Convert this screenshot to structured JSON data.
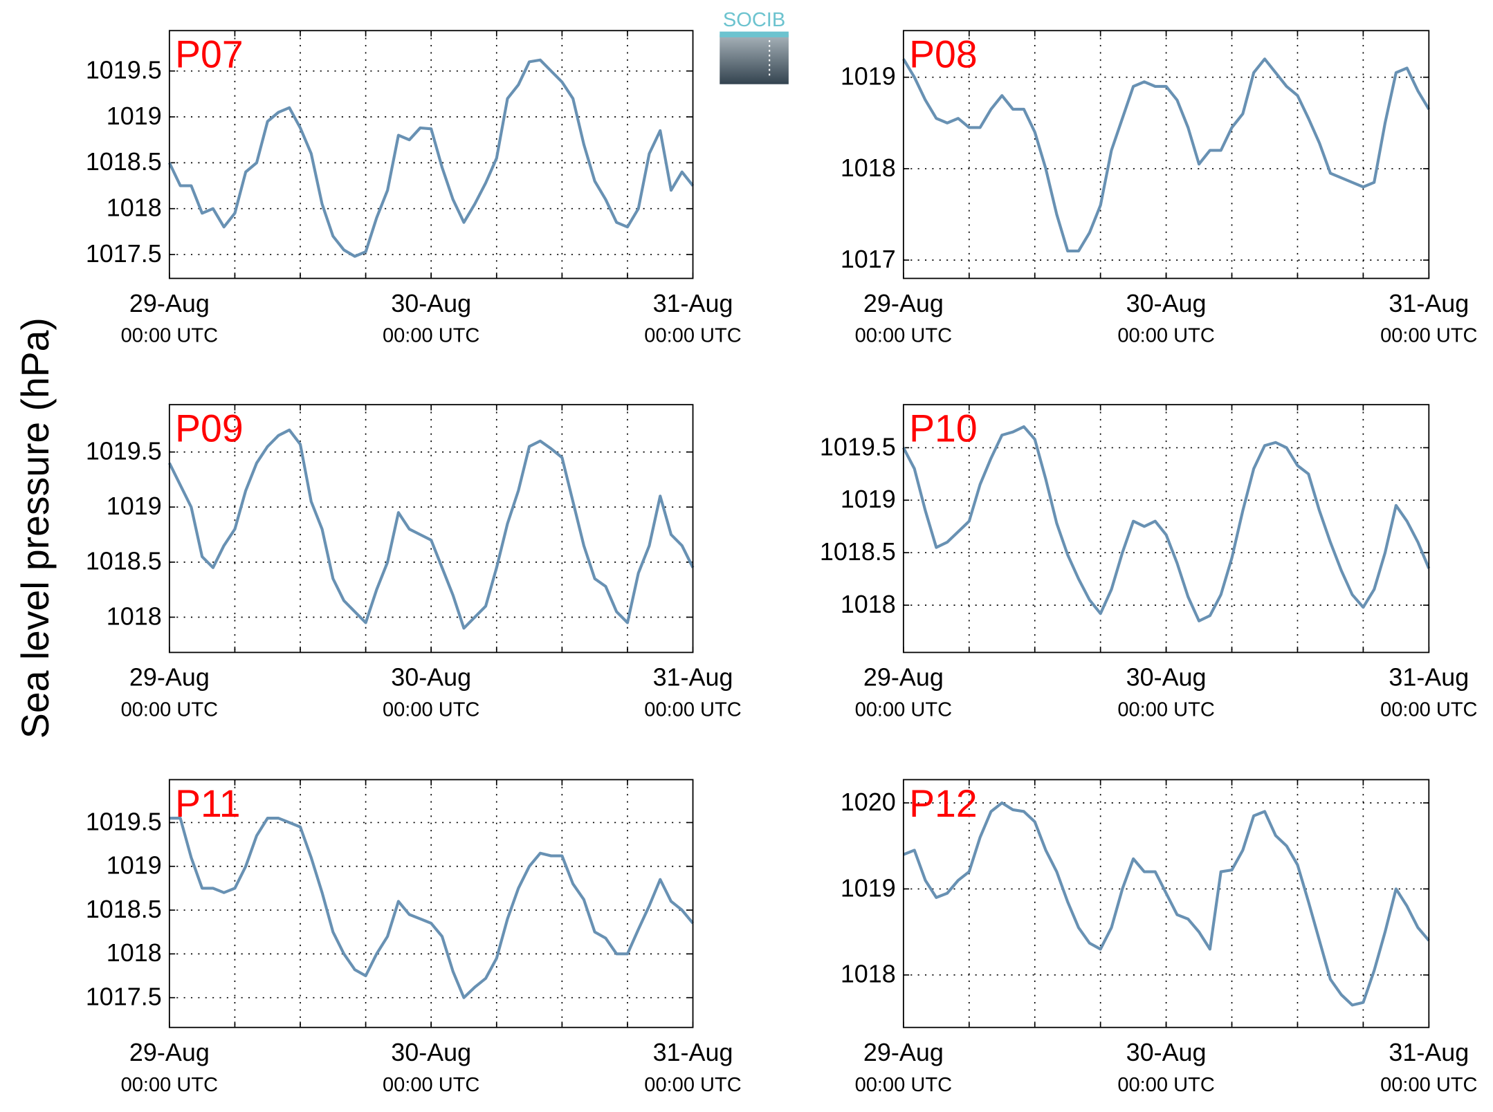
{
  "y_label": "Sea level pressure (hPa)",
  "logo": "SOCIB",
  "chart_data": [
    {
      "type": "line",
      "title": "P07",
      "title_color": "#ff0000",
      "x": [
        0,
        1,
        2,
        3,
        4,
        5,
        6,
        7,
        8,
        9,
        10,
        11,
        12,
        13,
        14,
        15,
        16,
        17,
        18,
        19,
        20,
        21,
        22,
        23,
        24,
        25,
        26,
        27,
        28,
        29,
        30,
        31,
        32,
        33,
        34,
        35,
        36,
        37,
        38,
        39,
        40,
        41,
        42,
        43,
        44,
        45,
        46,
        47,
        48
      ],
      "series": [
        {
          "color": "#6891b3",
          "values": [
            1018.5,
            1018.25,
            1018.25,
            1017.95,
            1018.0,
            1017.8,
            1017.95,
            1018.4,
            1018.5,
            1018.95,
            1019.05,
            1019.1,
            1018.88,
            1018.6,
            1018.05,
            1017.7,
            1017.55,
            1017.48,
            1017.53,
            1017.9,
            1018.2,
            1018.8,
            1018.75,
            1018.88,
            1018.87,
            1018.45,
            1018.1,
            1017.85,
            1018.05,
            1018.28,
            1018.55,
            1019.2,
            1019.35,
            1019.6,
            1019.62,
            1019.5,
            1019.38,
            1019.2,
            1018.7,
            1018.3,
            1018.1,
            1017.85,
            1017.8,
            1018.0,
            1018.6,
            1018.85,
            1018.2,
            1018.4,
            1018.25
          ]
        }
      ],
      "xlim": [
        0,
        48
      ],
      "xticks": [
        {
          "value": 0,
          "label": [
            "29-Aug",
            "00:00 UTC"
          ]
        },
        {
          "value": 24,
          "label": [
            "30-Aug",
            "00:00 UTC"
          ]
        },
        {
          "value": 48,
          "label": [
            "31-Aug",
            "00:00 UTC"
          ]
        }
      ],
      "xgrid": [
        6,
        12,
        18,
        24,
        30,
        36,
        42
      ],
      "ylim": [
        1017.24,
        1019.94
      ],
      "yticks": [
        1017.5,
        1018,
        1018.5,
        1019,
        1019.5
      ],
      "grid": true
    },
    {
      "type": "line",
      "title": "P08",
      "title_color": "#ff0000",
      "x": [
        0,
        1,
        2,
        3,
        4,
        5,
        6,
        7,
        8,
        9,
        10,
        11,
        12,
        13,
        14,
        15,
        16,
        17,
        18,
        19,
        20,
        21,
        22,
        23,
        24,
        25,
        26,
        27,
        28,
        29,
        30,
        31,
        32,
        33,
        34,
        35,
        36,
        37,
        38,
        39,
        40,
        41,
        42,
        43,
        44,
        45,
        46,
        47,
        48
      ],
      "series": [
        {
          "color": "#6891b3",
          "values": [
            1019.2,
            1019.0,
            1018.75,
            1018.55,
            1018.5,
            1018.55,
            1018.45,
            1018.45,
            1018.65,
            1018.8,
            1018.65,
            1018.65,
            1018.4,
            1018.0,
            1017.5,
            1017.1,
            1017.1,
            1017.3,
            1017.6,
            1018.2,
            1018.55,
            1018.9,
            1018.95,
            1018.9,
            1018.9,
            1018.75,
            1018.45,
            1018.05,
            1018.2,
            1018.2,
            1018.45,
            1018.6,
            1019.05,
            1019.2,
            1019.05,
            1018.9,
            1018.8,
            1018.55,
            1018.28,
            1017.95,
            1017.9,
            1017.85,
            1017.8,
            1017.85,
            1018.5,
            1019.05,
            1019.1,
            1018.85,
            1018.65
          ]
        }
      ],
      "xlim": [
        0,
        48
      ],
      "xticks": [
        {
          "value": 0,
          "label": [
            "29-Aug",
            "00:00 UTC"
          ]
        },
        {
          "value": 24,
          "label": [
            "30-Aug",
            "00:00 UTC"
          ]
        },
        {
          "value": 48,
          "label": [
            "31-Aug",
            "00:00 UTC"
          ]
        }
      ],
      "xgrid": [
        6,
        12,
        18,
        24,
        30,
        36,
        42
      ],
      "ylim": [
        1016.8,
        1019.51
      ],
      "yticks": [
        1017,
        1018,
        1019
      ],
      "grid": true
    },
    {
      "type": "line",
      "title": "P09",
      "title_color": "#ff0000",
      "x": [
        0,
        1,
        2,
        3,
        4,
        5,
        6,
        7,
        8,
        9,
        10,
        11,
        12,
        13,
        14,
        15,
        16,
        17,
        18,
        19,
        20,
        21,
        22,
        23,
        24,
        25,
        26,
        27,
        28,
        29,
        30,
        31,
        32,
        33,
        34,
        35,
        36,
        37,
        38,
        39,
        40,
        41,
        42,
        43,
        44,
        45,
        46,
        47,
        48
      ],
      "series": [
        {
          "color": "#6891b3",
          "values": [
            1019.4,
            1019.2,
            1019.0,
            1018.55,
            1018.45,
            1018.65,
            1018.8,
            1019.15,
            1019.4,
            1019.55,
            1019.65,
            1019.7,
            1019.57,
            1019.05,
            1018.8,
            1018.35,
            1018.15,
            1018.05,
            1017.95,
            1018.25,
            1018.5,
            1018.95,
            1018.8,
            1018.75,
            1018.7,
            1018.45,
            1018.2,
            1017.9,
            1018.0,
            1018.1,
            1018.45,
            1018.85,
            1019.15,
            1019.55,
            1019.6,
            1019.53,
            1019.45,
            1019.05,
            1018.65,
            1018.35,
            1018.28,
            1018.05,
            1017.95,
            1018.4,
            1018.65,
            1019.1,
            1018.75,
            1018.65,
            1018.45
          ]
        }
      ],
      "xlim": [
        0,
        48
      ],
      "xticks": [
        {
          "value": 0,
          "label": [
            "29-Aug",
            "00:00 UTC"
          ]
        },
        {
          "value": 24,
          "label": [
            "30-Aug",
            "00:00 UTC"
          ]
        },
        {
          "value": 48,
          "label": [
            "31-Aug",
            "00:00 UTC"
          ]
        }
      ],
      "xgrid": [
        6,
        12,
        18,
        24,
        30,
        36,
        42
      ],
      "ylim": [
        1017.68,
        1019.93
      ],
      "yticks": [
        1018,
        1018.5,
        1019,
        1019.5
      ],
      "grid": true
    },
    {
      "type": "line",
      "title": "P10",
      "title_color": "#ff0000",
      "x": [
        0,
        1,
        2,
        3,
        4,
        5,
        6,
        7,
        8,
        9,
        10,
        11,
        12,
        13,
        14,
        15,
        16,
        17,
        18,
        19,
        20,
        21,
        22,
        23,
        24,
        25,
        26,
        27,
        28,
        29,
        30,
        31,
        32,
        33,
        34,
        35,
        36,
        37,
        38,
        39,
        40,
        41,
        42,
        43,
        44,
        45,
        46,
        47,
        48
      ],
      "series": [
        {
          "color": "#6891b3",
          "values": [
            1019.5,
            1019.3,
            1018.9,
            1018.55,
            1018.6,
            1018.7,
            1018.8,
            1019.15,
            1019.4,
            1019.62,
            1019.65,
            1019.7,
            1019.58,
            1019.2,
            1018.78,
            1018.48,
            1018.25,
            1018.05,
            1017.92,
            1018.15,
            1018.5,
            1018.8,
            1018.75,
            1018.8,
            1018.67,
            1018.4,
            1018.08,
            1017.85,
            1017.9,
            1018.1,
            1018.45,
            1018.9,
            1019.3,
            1019.52,
            1019.55,
            1019.5,
            1019.33,
            1019.25,
            1018.9,
            1018.6,
            1018.33,
            1018.1,
            1017.98,
            1018.15,
            1018.5,
            1018.95,
            1018.8,
            1018.6,
            1018.35
          ]
        }
      ],
      "xlim": [
        0,
        48
      ],
      "xticks": [
        {
          "value": 0,
          "label": [
            "29-Aug",
            "00:00 UTC"
          ]
        },
        {
          "value": 24,
          "label": [
            "30-Aug",
            "00:00 UTC"
          ]
        },
        {
          "value": 48,
          "label": [
            "31-Aug",
            "00:00 UTC"
          ]
        }
      ],
      "xgrid": [
        6,
        12,
        18,
        24,
        30,
        36,
        42
      ],
      "ylim": [
        1017.55,
        1019.91
      ],
      "yticks": [
        1018,
        1018.5,
        1019,
        1019.5
      ],
      "grid": true
    },
    {
      "type": "line",
      "title": "P11",
      "title_color": "#ff0000",
      "x": [
        0,
        1,
        2,
        3,
        4,
        5,
        6,
        7,
        8,
        9,
        10,
        11,
        12,
        13,
        14,
        15,
        16,
        17,
        18,
        19,
        20,
        21,
        22,
        23,
        24,
        25,
        26,
        27,
        28,
        29,
        30,
        31,
        32,
        33,
        34,
        35,
        36,
        37,
        38,
        39,
        40,
        41,
        42,
        43,
        44,
        45,
        46,
        47,
        48
      ],
      "series": [
        {
          "color": "#6891b3",
          "values": [
            1019.55,
            1019.55,
            1019.1,
            1018.75,
            1018.75,
            1018.7,
            1018.75,
            1019.0,
            1019.35,
            1019.55,
            1019.55,
            1019.5,
            1019.45,
            1019.1,
            1018.7,
            1018.25,
            1018.0,
            1017.82,
            1017.75,
            1018.0,
            1018.2,
            1018.6,
            1018.45,
            1018.4,
            1018.35,
            1018.2,
            1017.8,
            1017.5,
            1017.62,
            1017.72,
            1017.95,
            1018.4,
            1018.75,
            1019.0,
            1019.15,
            1019.12,
            1019.12,
            1018.8,
            1018.62,
            1018.25,
            1018.18,
            1018.0,
            1018.0,
            1018.28,
            1018.55,
            1018.85,
            1018.6,
            1018.5,
            1018.35
          ]
        }
      ],
      "xlim": [
        0,
        48
      ],
      "xticks": [
        {
          "value": 0,
          "label": [
            "29-Aug",
            "00:00 UTC"
          ]
        },
        {
          "value": 24,
          "label": [
            "30-Aug",
            "00:00 UTC"
          ]
        },
        {
          "value": 48,
          "label": [
            "31-Aug",
            "00:00 UTC"
          ]
        }
      ],
      "xgrid": [
        6,
        12,
        18,
        24,
        30,
        36,
        42
      ],
      "ylim": [
        1017.16,
        1019.99
      ],
      "yticks": [
        1017.5,
        1018,
        1018.5,
        1019,
        1019.5
      ],
      "grid": true
    },
    {
      "type": "line",
      "title": "P12",
      "title_color": "#ff0000",
      "x": [
        0,
        1,
        2,
        3,
        4,
        5,
        6,
        7,
        8,
        9,
        10,
        11,
        12,
        13,
        14,
        15,
        16,
        17,
        18,
        19,
        20,
        21,
        22,
        23,
        24,
        25,
        26,
        27,
        28,
        29,
        30,
        31,
        32,
        33,
        34,
        35,
        36,
        37,
        38,
        39,
        40,
        41,
        42,
        43,
        44,
        45,
        46,
        47,
        48
      ],
      "series": [
        {
          "color": "#6891b3",
          "values": [
            1019.4,
            1019.45,
            1019.1,
            1018.9,
            1018.95,
            1019.1,
            1019.2,
            1019.6,
            1019.9,
            1020.0,
            1019.92,
            1019.9,
            1019.78,
            1019.45,
            1019.2,
            1018.85,
            1018.55,
            1018.37,
            1018.3,
            1018.55,
            1019.0,
            1019.35,
            1019.2,
            1019.2,
            1018.95,
            1018.7,
            1018.65,
            1018.5,
            1018.3,
            1019.2,
            1019.22,
            1019.45,
            1019.85,
            1019.9,
            1019.62,
            1019.5,
            1019.28,
            1018.85,
            1018.4,
            1017.95,
            1017.77,
            1017.65,
            1017.68,
            1018.05,
            1018.5,
            1019.0,
            1018.8,
            1018.55,
            1018.4
          ]
        }
      ],
      "xlim": [
        0,
        48
      ],
      "xticks": [
        {
          "value": 0,
          "label": [
            "29-Aug",
            "00:00 UTC"
          ]
        },
        {
          "value": 24,
          "label": [
            "30-Aug",
            "00:00 UTC"
          ]
        },
        {
          "value": 48,
          "label": [
            "31-Aug",
            "00:00 UTC"
          ]
        }
      ],
      "xgrid": [
        6,
        12,
        18,
        24,
        30,
        36,
        42
      ],
      "ylim": [
        1017.39,
        1020.27
      ],
      "yticks": [
        1018,
        1019,
        1020
      ],
      "grid": true
    }
  ]
}
